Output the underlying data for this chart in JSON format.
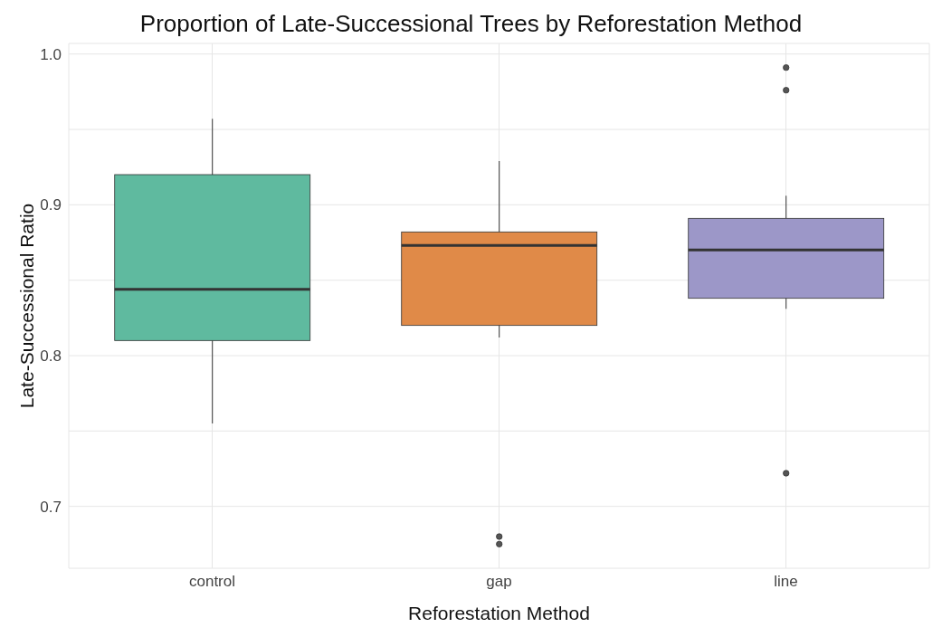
{
  "chart_data": {
    "type": "box",
    "title": "Proportion of Late-Successional Trees by Reforestation Method",
    "xlabel": "Reforestation Method",
    "ylabel": "Late-Successional Ratio",
    "categories": [
      "control",
      "gap",
      "line"
    ],
    "colors": [
      "#5fba9f",
      "#e08a48",
      "#9c97c8"
    ],
    "boxes": [
      {
        "low": 0.755,
        "q1": 0.81,
        "median": 0.844,
        "q3": 0.92,
        "high": 0.957
      },
      {
        "low": 0.812,
        "q1": 0.82,
        "median": 0.873,
        "q3": 0.882,
        "high": 0.929,
        "outliers": [
          0.68,
          0.675
        ]
      },
      {
        "low": 0.831,
        "q1": 0.838,
        "median": 0.87,
        "q3": 0.891,
        "high": 0.906,
        "outliers": [
          0.991,
          0.976,
          0.722
        ]
      }
    ],
    "ylim": [
      0.659,
      1.007
    ],
    "yticks": [
      0.7,
      {
        "value": 0.75,
        "label": null
      },
      0.8,
      {
        "value": 0.85,
        "label": null
      },
      0.9,
      {
        "value": 0.95,
        "label": null
      },
      {
        "value": 1.0,
        "label": "1.0"
      }
    ],
    "grid": true
  }
}
